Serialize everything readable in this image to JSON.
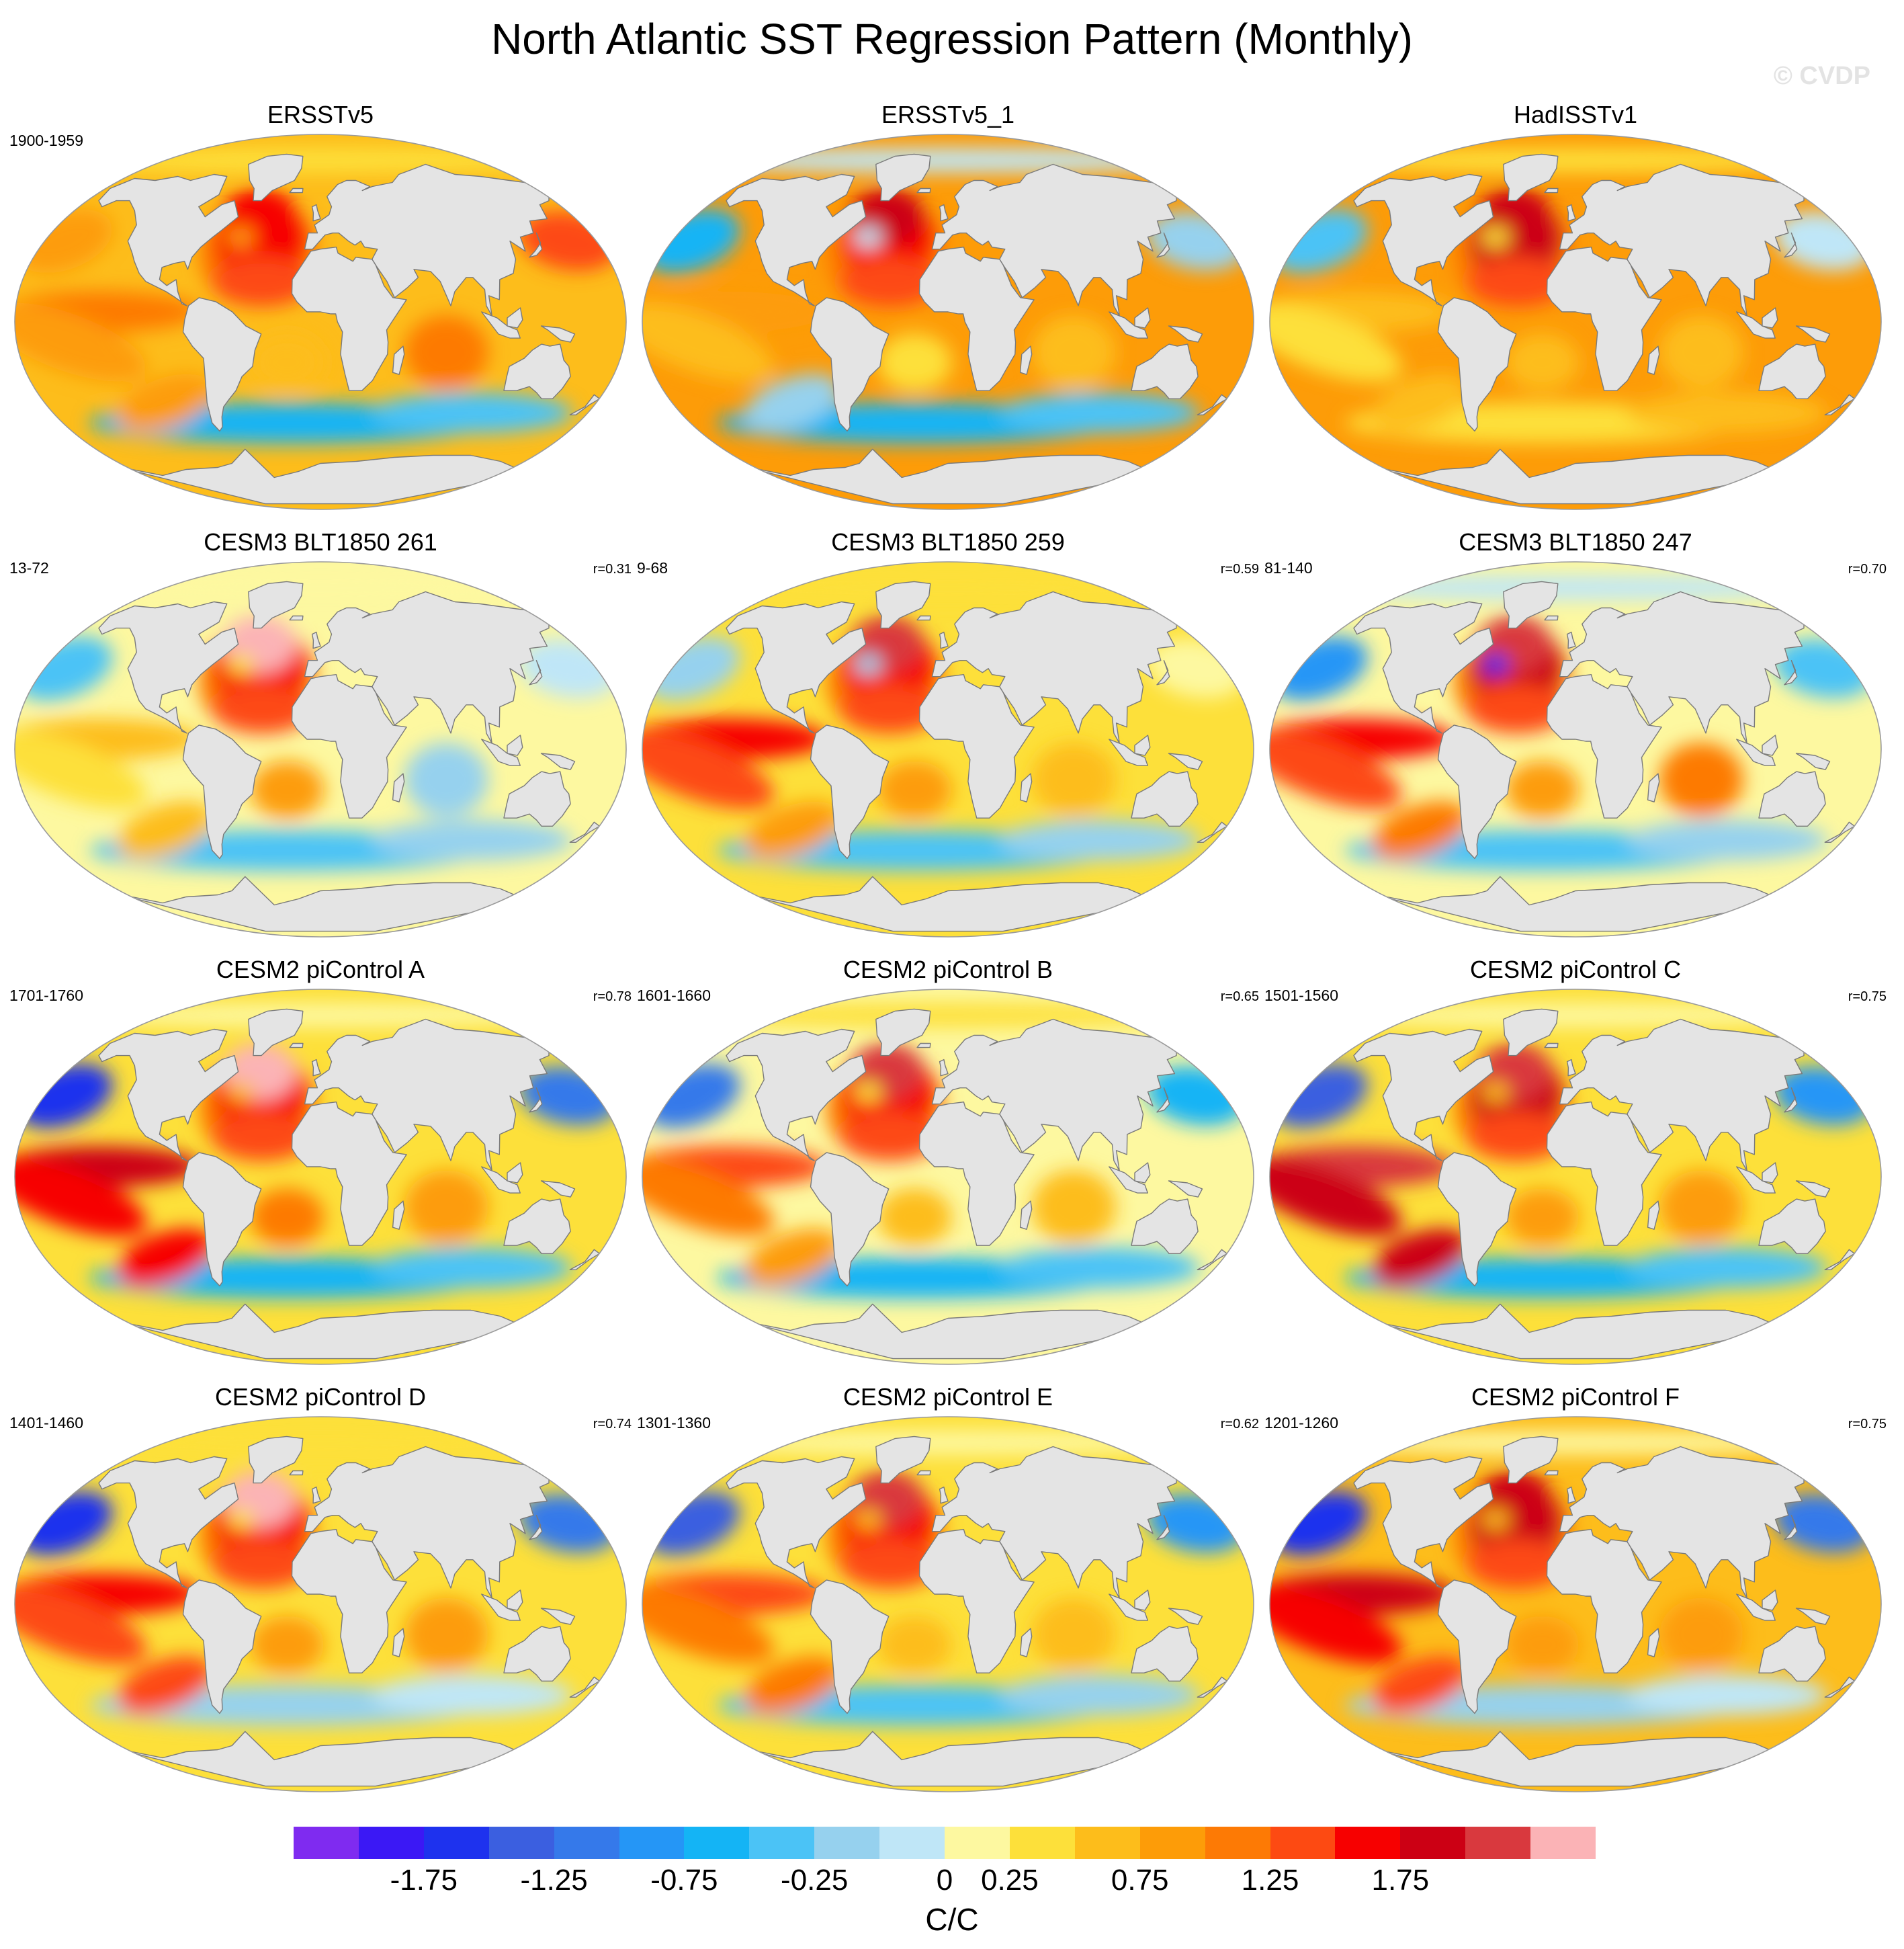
{
  "title": "North Atlantic SST Regression Pattern (Monthly)",
  "watermark": "© CVDP",
  "panels": [
    {
      "name": "ERSSTv5",
      "period": "1900-1959",
      "corr": "",
      "pattern": 0
    },
    {
      "name": "ERSSTv5_1",
      "period": "",
      "corr": "",
      "pattern": 1
    },
    {
      "name": "HadISSTv1",
      "period": "",
      "corr": "",
      "pattern": 2
    },
    {
      "name": "CESM3 BLT1850 261",
      "period": "13-72",
      "corr": "r=0.31",
      "pattern": 3
    },
    {
      "name": "CESM3 BLT1850 259",
      "period": "9-68",
      "corr": "r=0.59",
      "pattern": 4
    },
    {
      "name": "CESM3 BLT1850 247",
      "period": "81-140",
      "corr": "r=0.70",
      "pattern": 5
    },
    {
      "name": "CESM2 piControl A",
      "period": "1701-1760",
      "corr": "r=0.78",
      "pattern": 6
    },
    {
      "name": "CESM2 piControl B",
      "period": "1601-1660",
      "corr": "r=0.65",
      "pattern": 7
    },
    {
      "name": "CESM2 piControl C",
      "period": "1501-1560",
      "corr": "r=0.75",
      "pattern": 8
    },
    {
      "name": "CESM2 piControl D",
      "period": "1401-1460",
      "corr": "r=0.74",
      "pattern": 9
    },
    {
      "name": "CESM2 piControl E",
      "period": "1301-1360",
      "corr": "r=0.62",
      "pattern": 10
    },
    {
      "name": "CESM2 piControl F",
      "period": "1201-1260",
      "corr": "r=0.75",
      "pattern": 11
    }
  ],
  "colorbar": {
    "units": "C/C",
    "colors": [
      "#7f2bf0",
      "#3b18f5",
      "#1e32ee",
      "#3b5fe0",
      "#3579ea",
      "#2596f6",
      "#14b4f5",
      "#4bc3f6",
      "#96d1ee",
      "#bfe6f7",
      "#fdf8a0",
      "#fde03a",
      "#fdbd1b",
      "#fd9c08",
      "#fd7a05",
      "#fd4a12",
      "#f70000",
      "#cc0014",
      "#d9393e",
      "#fbb3b6"
    ],
    "labels": [
      "-1.75",
      "-1.25",
      "-0.75",
      "-0.25",
      "0",
      "0.25",
      "0.75",
      "1.25",
      "1.75"
    ],
    "label_boundaries": [
      2,
      4,
      6,
      8,
      10,
      11,
      13,
      15,
      17
    ]
  },
  "land_color": "#e4e4e4"
}
